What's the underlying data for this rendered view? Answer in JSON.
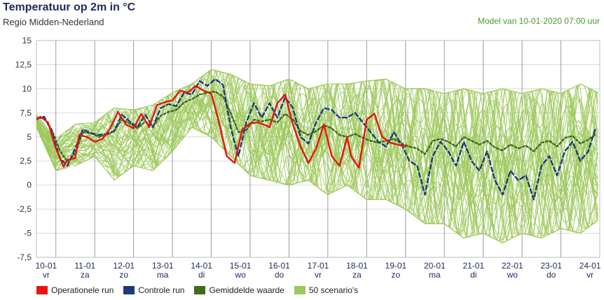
{
  "header": {
    "title": "Temperatuur op 2m in °C",
    "subtitle": "Regio Midden-Nederland",
    "model": "Model van 10-01-2020 07:00 uur"
  },
  "colors": {
    "operational": "#e8140f",
    "control": "#1f3a7a",
    "mean": "#3e6b1e",
    "scenario": "#9cc95a",
    "grid": "#d8d8d8"
  },
  "legend": [
    {
      "key": "operational",
      "label": "Operationele run"
    },
    {
      "key": "control",
      "label": "Controle run"
    },
    {
      "key": "mean",
      "label": "Gemiddelde waarde"
    },
    {
      "key": "scenario",
      "label": "50 scenario's"
    }
  ],
  "chart_data": {
    "type": "line",
    "title": "Temperatuur op 2m in °C",
    "xlabel": "",
    "ylabel": "",
    "ylim": [
      -7.5,
      15
    ],
    "yticks": [
      "15",
      "12,5",
      "10",
      "7,5",
      "5",
      "2,5",
      "0",
      "-2,5",
      "-5",
      "-7,5"
    ],
    "yticks_values": [
      15,
      12.5,
      10,
      7.5,
      5,
      2.5,
      0,
      -2.5,
      -5,
      -7.5
    ],
    "xlim": [
      0,
      14.5
    ],
    "days": [
      {
        "date": "10-01",
        "day": "vr"
      },
      {
        "date": "11-01",
        "day": "za"
      },
      {
        "date": "12-01",
        "day": "zo"
      },
      {
        "date": "13-01",
        "day": "ma"
      },
      {
        "date": "14-01",
        "day": "di"
      },
      {
        "date": "15-01",
        "day": "wo"
      },
      {
        "date": "16-01",
        "day": "do"
      },
      {
        "date": "17-01",
        "day": "vr"
      },
      {
        "date": "18-01",
        "day": "za"
      },
      {
        "date": "19-01",
        "day": "zo"
      },
      {
        "date": "20-01",
        "day": "ma"
      },
      {
        "date": "21-01",
        "day": "di"
      },
      {
        "date": "22-01",
        "day": "wo"
      },
      {
        "date": "23-01",
        "day": "do"
      },
      {
        "date": "24-01",
        "day": "vr"
      }
    ],
    "grid": true,
    "legend_position": "bottom",
    "series": [
      {
        "name": "Operationele run",
        "x": [
          0,
          0.1,
          0.3,
          0.5,
          0.7,
          0.8,
          1.0,
          1.1,
          1.3,
          1.5,
          1.7,
          1.9,
          2.1,
          2.3,
          2.5,
          2.7,
          2.9,
          3.1,
          3.3,
          3.5,
          3.7,
          3.9,
          4.1,
          4.3,
          4.5,
          4.7,
          4.9,
          5.1,
          5.3,
          5.5,
          5.7,
          5.9,
          6.0,
          6.2,
          6.4,
          6.6,
          6.8,
          7.0,
          7.2,
          7.4,
          7.6,
          7.8,
          8.0,
          8.1,
          8.3,
          8.5,
          8.7,
          8.9,
          9.1,
          9.3,
          9.5
        ],
        "y": [
          6.8,
          7.1,
          6.5,
          3.8,
          1.9,
          2.6,
          2.8,
          5.2,
          5.0,
          4.5,
          4.8,
          5.9,
          7.6,
          6.3,
          5.9,
          7.4,
          6.0,
          8.3,
          8.6,
          8.8,
          9.8,
          9.6,
          10.3,
          9.8,
          9.5,
          6.5,
          3.0,
          2.3,
          5.8,
          6.4,
          6.5,
          6.2,
          6.0,
          8.5,
          9.4,
          6.3,
          4.0,
          2.3,
          3.8,
          6.3,
          3.0,
          2.0,
          5.0,
          3.0,
          1.8,
          6.8,
          7.4,
          5.0,
          4.4,
          4.2,
          4.0
        ]
      },
      {
        "name": "Controle run",
        "x": [
          0,
          0.2,
          0.4,
          0.6,
          0.8,
          1.0,
          1.2,
          1.4,
          1.6,
          1.8,
          2.0,
          2.2,
          2.4,
          2.6,
          2.8,
          3.0,
          3.2,
          3.4,
          3.6,
          3.8,
          4.0,
          4.2,
          4.4,
          4.6,
          4.8,
          5.0,
          5.2,
          5.4,
          5.6,
          5.8,
          6.0,
          6.2,
          6.4,
          6.6,
          6.8,
          7.0,
          7.2,
          7.4,
          7.6,
          7.8,
          8.0,
          8.2,
          8.4,
          8.6,
          8.8,
          9.0,
          9.2,
          9.4,
          9.6,
          9.8,
          10.0,
          10.2,
          10.4,
          10.6,
          10.8,
          11.0,
          11.2,
          11.4,
          11.6,
          11.8,
          12.0,
          12.2,
          12.4,
          12.6,
          12.8,
          13.0,
          13.2,
          13.4,
          13.6,
          13.8,
          14.0,
          14.2,
          14.4
        ],
        "y": [
          6.9,
          7.1,
          5.5,
          2.8,
          2.0,
          3.8,
          5.8,
          5.4,
          5.2,
          5.3,
          5.6,
          7.3,
          6.6,
          6.0,
          7.3,
          6.0,
          8.0,
          8.4,
          8.2,
          9.6,
          9.4,
          10.8,
          10.3,
          11.0,
          10.4,
          6.0,
          3.0,
          6.5,
          8.5,
          7.0,
          8.5,
          7.0,
          9.1,
          8.0,
          5.0,
          4.3,
          6.5,
          8.0,
          7.8,
          7.0,
          7.0,
          7.5,
          6.5,
          5.5,
          4.5,
          4.0,
          5.5,
          4.2,
          2.5,
          2.0,
          -1.0,
          3.0,
          4.5,
          3.5,
          2.0,
          4.5,
          2.5,
          1.5,
          3.5,
          0.5,
          -1.0,
          1.5,
          0.5,
          1.0,
          -1.5,
          2.0,
          3.0,
          1.0,
          3.5,
          4.5,
          2.5,
          3.5,
          6.0
        ]
      },
      {
        "name": "Gemiddelde waarde",
        "x": [
          0,
          0.2,
          0.4,
          0.6,
          0.8,
          1.0,
          1.2,
          1.4,
          1.6,
          1.8,
          2.0,
          2.2,
          2.4,
          2.6,
          2.8,
          3.0,
          3.2,
          3.4,
          3.6,
          3.8,
          4.0,
          4.2,
          4.4,
          4.6,
          4.8,
          5.0,
          5.2,
          5.4,
          5.6,
          5.8,
          6.0,
          6.2,
          6.4,
          6.6,
          6.8,
          7.0,
          7.2,
          7.4,
          7.6,
          7.8,
          8.0,
          8.2,
          8.4,
          8.6,
          8.8,
          9.0,
          9.2,
          9.4,
          9.6,
          9.8,
          10.0,
          10.2,
          10.4,
          10.6,
          10.8,
          11.0,
          11.2,
          11.4,
          11.6,
          11.8,
          12.0,
          12.2,
          12.4,
          12.6,
          12.8,
          13.0,
          13.2,
          13.4,
          13.6,
          13.8,
          14.0,
          14.2,
          14.4
        ],
        "y": [
          6.9,
          7.0,
          5.7,
          3.6,
          2.4,
          3.3,
          5.5,
          5.4,
          5.0,
          5.2,
          5.6,
          6.8,
          6.4,
          5.9,
          6.6,
          6.1,
          7.2,
          7.6,
          7.8,
          8.6,
          8.9,
          9.4,
          9.6,
          9.7,
          9.2,
          7.5,
          5.5,
          5.7,
          6.8,
          6.6,
          6.8,
          6.5,
          7.4,
          6.8,
          5.6,
          5.2,
          5.6,
          6.2,
          5.9,
          5.2,
          5.0,
          5.3,
          4.9,
          4.6,
          4.4,
          4.6,
          4.8,
          4.3,
          4.0,
          3.8,
          3.2,
          4.6,
          4.8,
          4.5,
          4.0,
          5.0,
          4.6,
          4.2,
          4.6,
          3.9,
          3.6,
          4.2,
          3.8,
          4.1,
          3.5,
          4.4,
          4.6,
          4.0,
          4.9,
          5.1,
          4.3,
          4.7,
          5.3
        ]
      }
    ],
    "scenario_envelope": {
      "name": "50 scenario's",
      "x": [
        0,
        0.5,
        1.0,
        1.5,
        2.0,
        2.5,
        3.0,
        3.5,
        4.0,
        4.5,
        5.0,
        5.5,
        6.0,
        6.5,
        7.0,
        7.5,
        8.0,
        8.5,
        9.0,
        9.5,
        10.0,
        10.5,
        11.0,
        11.5,
        12.0,
        12.5,
        13.0,
        13.5,
        14.0,
        14.5
      ],
      "upper": [
        7.3,
        4.8,
        6.3,
        6.5,
        8.0,
        7.8,
        8.3,
        9.6,
        10.5,
        12.0,
        11.5,
        10.5,
        10.3,
        11.0,
        10.0,
        10.5,
        10.5,
        10.8,
        11.0,
        10.0,
        10.0,
        9.5,
        10.0,
        9.5,
        10.0,
        9.5,
        10.0,
        9.5,
        10.5,
        9.5
      ],
      "lower": [
        6.0,
        1.5,
        2.0,
        3.0,
        0.5,
        2.0,
        1.5,
        3.5,
        6.0,
        5.0,
        3.0,
        1.0,
        0.5,
        0.0,
        0.5,
        -1.0,
        0.0,
        -1.5,
        -1.5,
        -2.5,
        -4.0,
        -4.0,
        -5.5,
        -5.0,
        -6.0,
        -5.0,
        -5.5,
        -4.5,
        -5.0,
        -3.5
      ],
      "count": 50
    }
  }
}
